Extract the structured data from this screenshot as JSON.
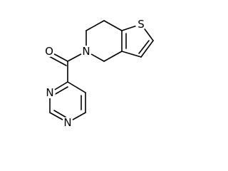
{
  "atoms": [
    "O",
    "N",
    "N",
    "N",
    "S"
  ]
}
